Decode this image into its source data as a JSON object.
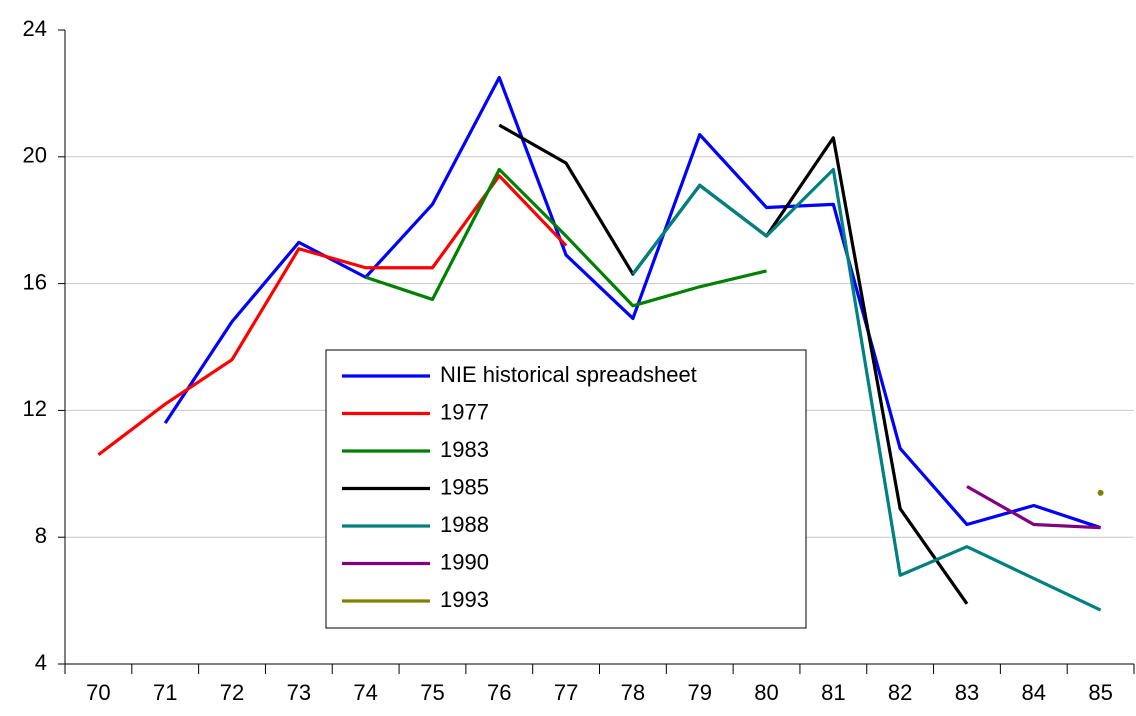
{
  "chart_data": {
    "type": "line",
    "categories": [
      "70",
      "71",
      "72",
      "73",
      "74",
      "75",
      "76",
      "77",
      "78",
      "79",
      "80",
      "81",
      "82",
      "83",
      "84",
      "85"
    ],
    "series": [
      {
        "name": "NIE historical spreadsheet",
        "color": "#0000ff",
        "values": [
          null,
          11.6,
          14.8,
          17.3,
          16.2,
          18.5,
          22.5,
          16.9,
          14.9,
          20.7,
          18.4,
          18.5,
          10.8,
          8.4,
          9.0,
          8.3
        ]
      },
      {
        "name": "1977",
        "color": "#ff0000",
        "values": [
          10.6,
          12.2,
          13.6,
          17.1,
          16.5,
          16.5,
          19.4,
          17.2,
          null,
          null,
          null,
          null,
          null,
          null,
          null,
          null
        ]
      },
      {
        "name": "1983",
        "color": "#008000",
        "values": [
          null,
          null,
          null,
          null,
          16.2,
          15.5,
          19.6,
          17.5,
          15.3,
          15.9,
          16.4,
          null,
          null,
          null,
          null,
          null
        ]
      },
      {
        "name": "1985",
        "color": "#000000",
        "values": [
          null,
          null,
          null,
          null,
          null,
          null,
          21.0,
          19.8,
          16.3,
          19.1,
          17.5,
          20.6,
          8.9,
          5.9,
          null,
          null
        ]
      },
      {
        "name": "1988",
        "color": "#008080",
        "values": [
          null,
          null,
          null,
          null,
          null,
          null,
          null,
          null,
          16.3,
          19.1,
          17.5,
          19.6,
          6.8,
          7.7,
          6.7,
          5.7
        ]
      },
      {
        "name": "1990",
        "color": "#800080",
        "values": [
          null,
          null,
          null,
          null,
          null,
          null,
          null,
          null,
          null,
          null,
          null,
          null,
          null,
          9.6,
          8.4,
          8.3
        ]
      },
      {
        "name": "1993",
        "color": "#808000",
        "values": [
          null,
          null,
          null,
          null,
          null,
          null,
          null,
          null,
          null,
          null,
          null,
          null,
          null,
          null,
          null,
          9.4
        ]
      }
    ],
    "ylim": [
      4,
      24
    ],
    "yticks": [
      4,
      8,
      12,
      16,
      20,
      24
    ],
    "grid": true
  }
}
